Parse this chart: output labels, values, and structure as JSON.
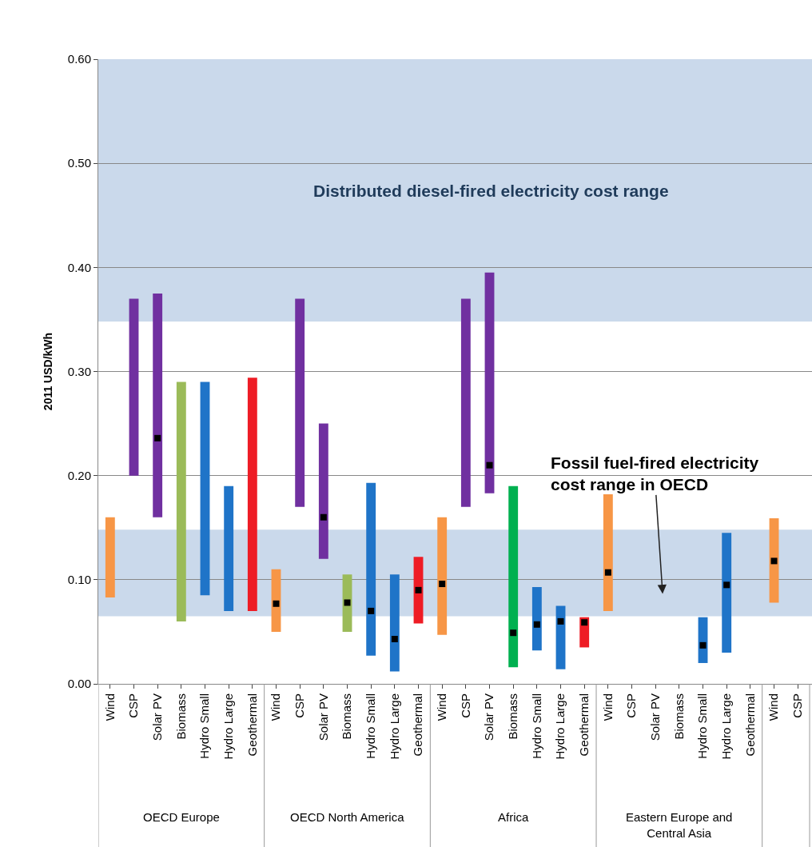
{
  "chart_data": {
    "type": "bar",
    "ylabel": "2011 USD/kWh",
    "categories": [
      "Wind",
      "CSP",
      "Solar PV",
      "Biomass",
      "Hydro Small",
      "Hydro Large",
      "Geothermal",
      "Wind",
      "CSP",
      "Solar PV",
      "Biomass",
      "Hydro Small",
      "Hydro Large",
      "Geothermal",
      "Wind",
      "CSP",
      "Solar PV",
      "Biomass",
      "Hydro Small",
      "Hydro Large",
      "Geothermal",
      "Wind",
      "CSP",
      "Solar PV",
      "Biomass",
      "Hydro Small",
      "Hydro Large",
      "Geothermal",
      "Wind",
      "CSP"
    ],
    "series": [
      {
        "base": [
          0.083,
          0.2,
          0.16,
          0.06,
          0.085,
          0.07,
          0.07,
          0.05,
          0.17,
          0.12,
          0.05,
          0.027,
          0.012,
          0.058,
          0.047,
          0.17,
          0.183,
          0.016,
          0.032,
          0.014,
          0.035,
          0.07,
          null,
          null,
          null,
          0.02,
          0.03,
          null,
          0.078,
          null
        ],
        "values": [
          0.077,
          0.17,
          0.215,
          0.23,
          0.205,
          0.12,
          0.224,
          0.06,
          0.2,
          0.13,
          0.055,
          0.166,
          0.093,
          0.064,
          0.113,
          0.2,
          0.212,
          0.174,
          0.061,
          0.061,
          0.029,
          0.112,
          null,
          null,
          null,
          0.044,
          0.115,
          null,
          0.081,
          null
        ],
        "colors": [
          "#f79646",
          "#7030a0",
          "#7030a0",
          "#9bbb59",
          "#1f74c8",
          "#1f74c8",
          "#ee1c25",
          "#f79646",
          "#7030a0",
          "#7030a0",
          "#9bbb59",
          "#1f74c8",
          "#1f74c8",
          "#ee1c25",
          "#f79646",
          "#7030a0",
          "#7030a0",
          "#00b050",
          "#1f74c8",
          "#1f74c8",
          "#ee1c25",
          "#f79646",
          "#7030a0",
          "#7030a0",
          "#9bbb59",
          "#1f74c8",
          "#1f74c8",
          "#ee1c25",
          "#f79646",
          "#7030a0"
        ]
      },
      {
        "type": "scatter",
        "marker": "square",
        "color": "#000000",
        "values": [
          null,
          null,
          0.236,
          null,
          null,
          null,
          null,
          0.077,
          null,
          0.16,
          0.078,
          0.07,
          0.043,
          0.09,
          0.096,
          null,
          0.21,
          0.049,
          0.057,
          0.06,
          0.059,
          0.107,
          null,
          null,
          null,
          0.037,
          0.095,
          null,
          0.118,
          null
        ]
      }
    ],
    "ylim": [
      0,
      0.6
    ],
    "yticks": [
      {
        "value": 0,
        "label": "0.00"
      },
      {
        "value": 0.1,
        "label": "0.10"
      },
      {
        "value": 0.2,
        "label": "0.20"
      },
      {
        "value": 0.3,
        "label": "0.30"
      },
      {
        "value": 0.4,
        "label": "0.40"
      },
      {
        "value": 0.5,
        "label": "0.50"
      },
      {
        "value": 0.6,
        "label": "0.60"
      }
    ],
    "grid": "y",
    "bands": [
      {
        "axis": "y",
        "from": 0.348,
        "to": 0.6,
        "label": "Distributed diesel-fired electricity cost range",
        "color": "#b8cce4"
      },
      {
        "axis": "y",
        "from": 0.065,
        "to": 0.148,
        "label": "Fossil fuel-fired electricity cost range in OECD",
        "color": "#b8cce4"
      }
    ],
    "annotations": [
      "OECD Europe",
      "OECD North America",
      "Africa",
      "Eastern Europe and Central Asia"
    ]
  }
}
